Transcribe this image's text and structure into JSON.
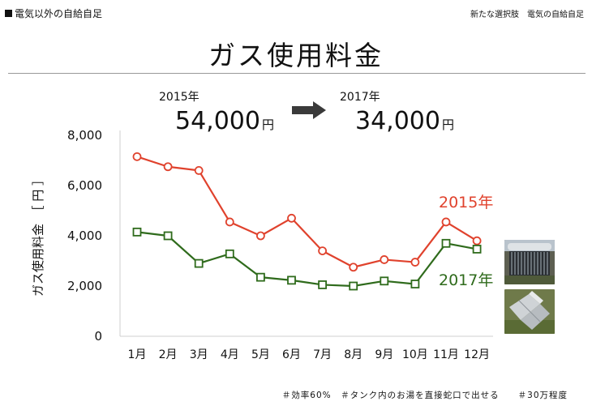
{
  "header": {
    "section_label": "電気以外の自給自足",
    "right_caption": "新たな選択肢　電気の自給自足"
  },
  "title": "ガス使用料金",
  "summary": {
    "from_year": "2015年",
    "from_amount": "54,000",
    "to_year": "2017年",
    "to_amount": "34,000",
    "unit": "円"
  },
  "chart_data": {
    "type": "line",
    "categories": [
      "1月",
      "2月",
      "3月",
      "4月",
      "5月",
      "6月",
      "7月",
      "8月",
      "9月",
      "10月",
      "11月",
      "12月"
    ],
    "series": [
      {
        "name": "2015年",
        "color": "#e0422d",
        "marker": "circle",
        "values": [
          7150,
          6750,
          6600,
          4550,
          4000,
          4700,
          3400,
          2750,
          3050,
          2950,
          4550,
          3800
        ]
      },
      {
        "name": "2017年",
        "color": "#2f6b1c",
        "marker": "square",
        "values": [
          4150,
          4000,
          2900,
          3280,
          2350,
          2230,
          2050,
          2000,
          2200,
          2080,
          3700,
          3470
        ]
      }
    ],
    "ylabel": "ガス使用料金　［ 円 ］",
    "ylim": [
      0,
      8000
    ],
    "yticks": [
      0,
      2000,
      4000,
      6000,
      8000
    ],
    "ytick_labels": [
      "0",
      "2,000",
      "4,000",
      "6,000",
      "8,000"
    ],
    "legend": "inline-right"
  },
  "photos": [
    "solar-water-heater-photo",
    "solar-collector-panel-photo"
  ],
  "footer": "＃効率60%　＃タンク内のお湯を直接蛇口で出せる　　＃30万程度"
}
